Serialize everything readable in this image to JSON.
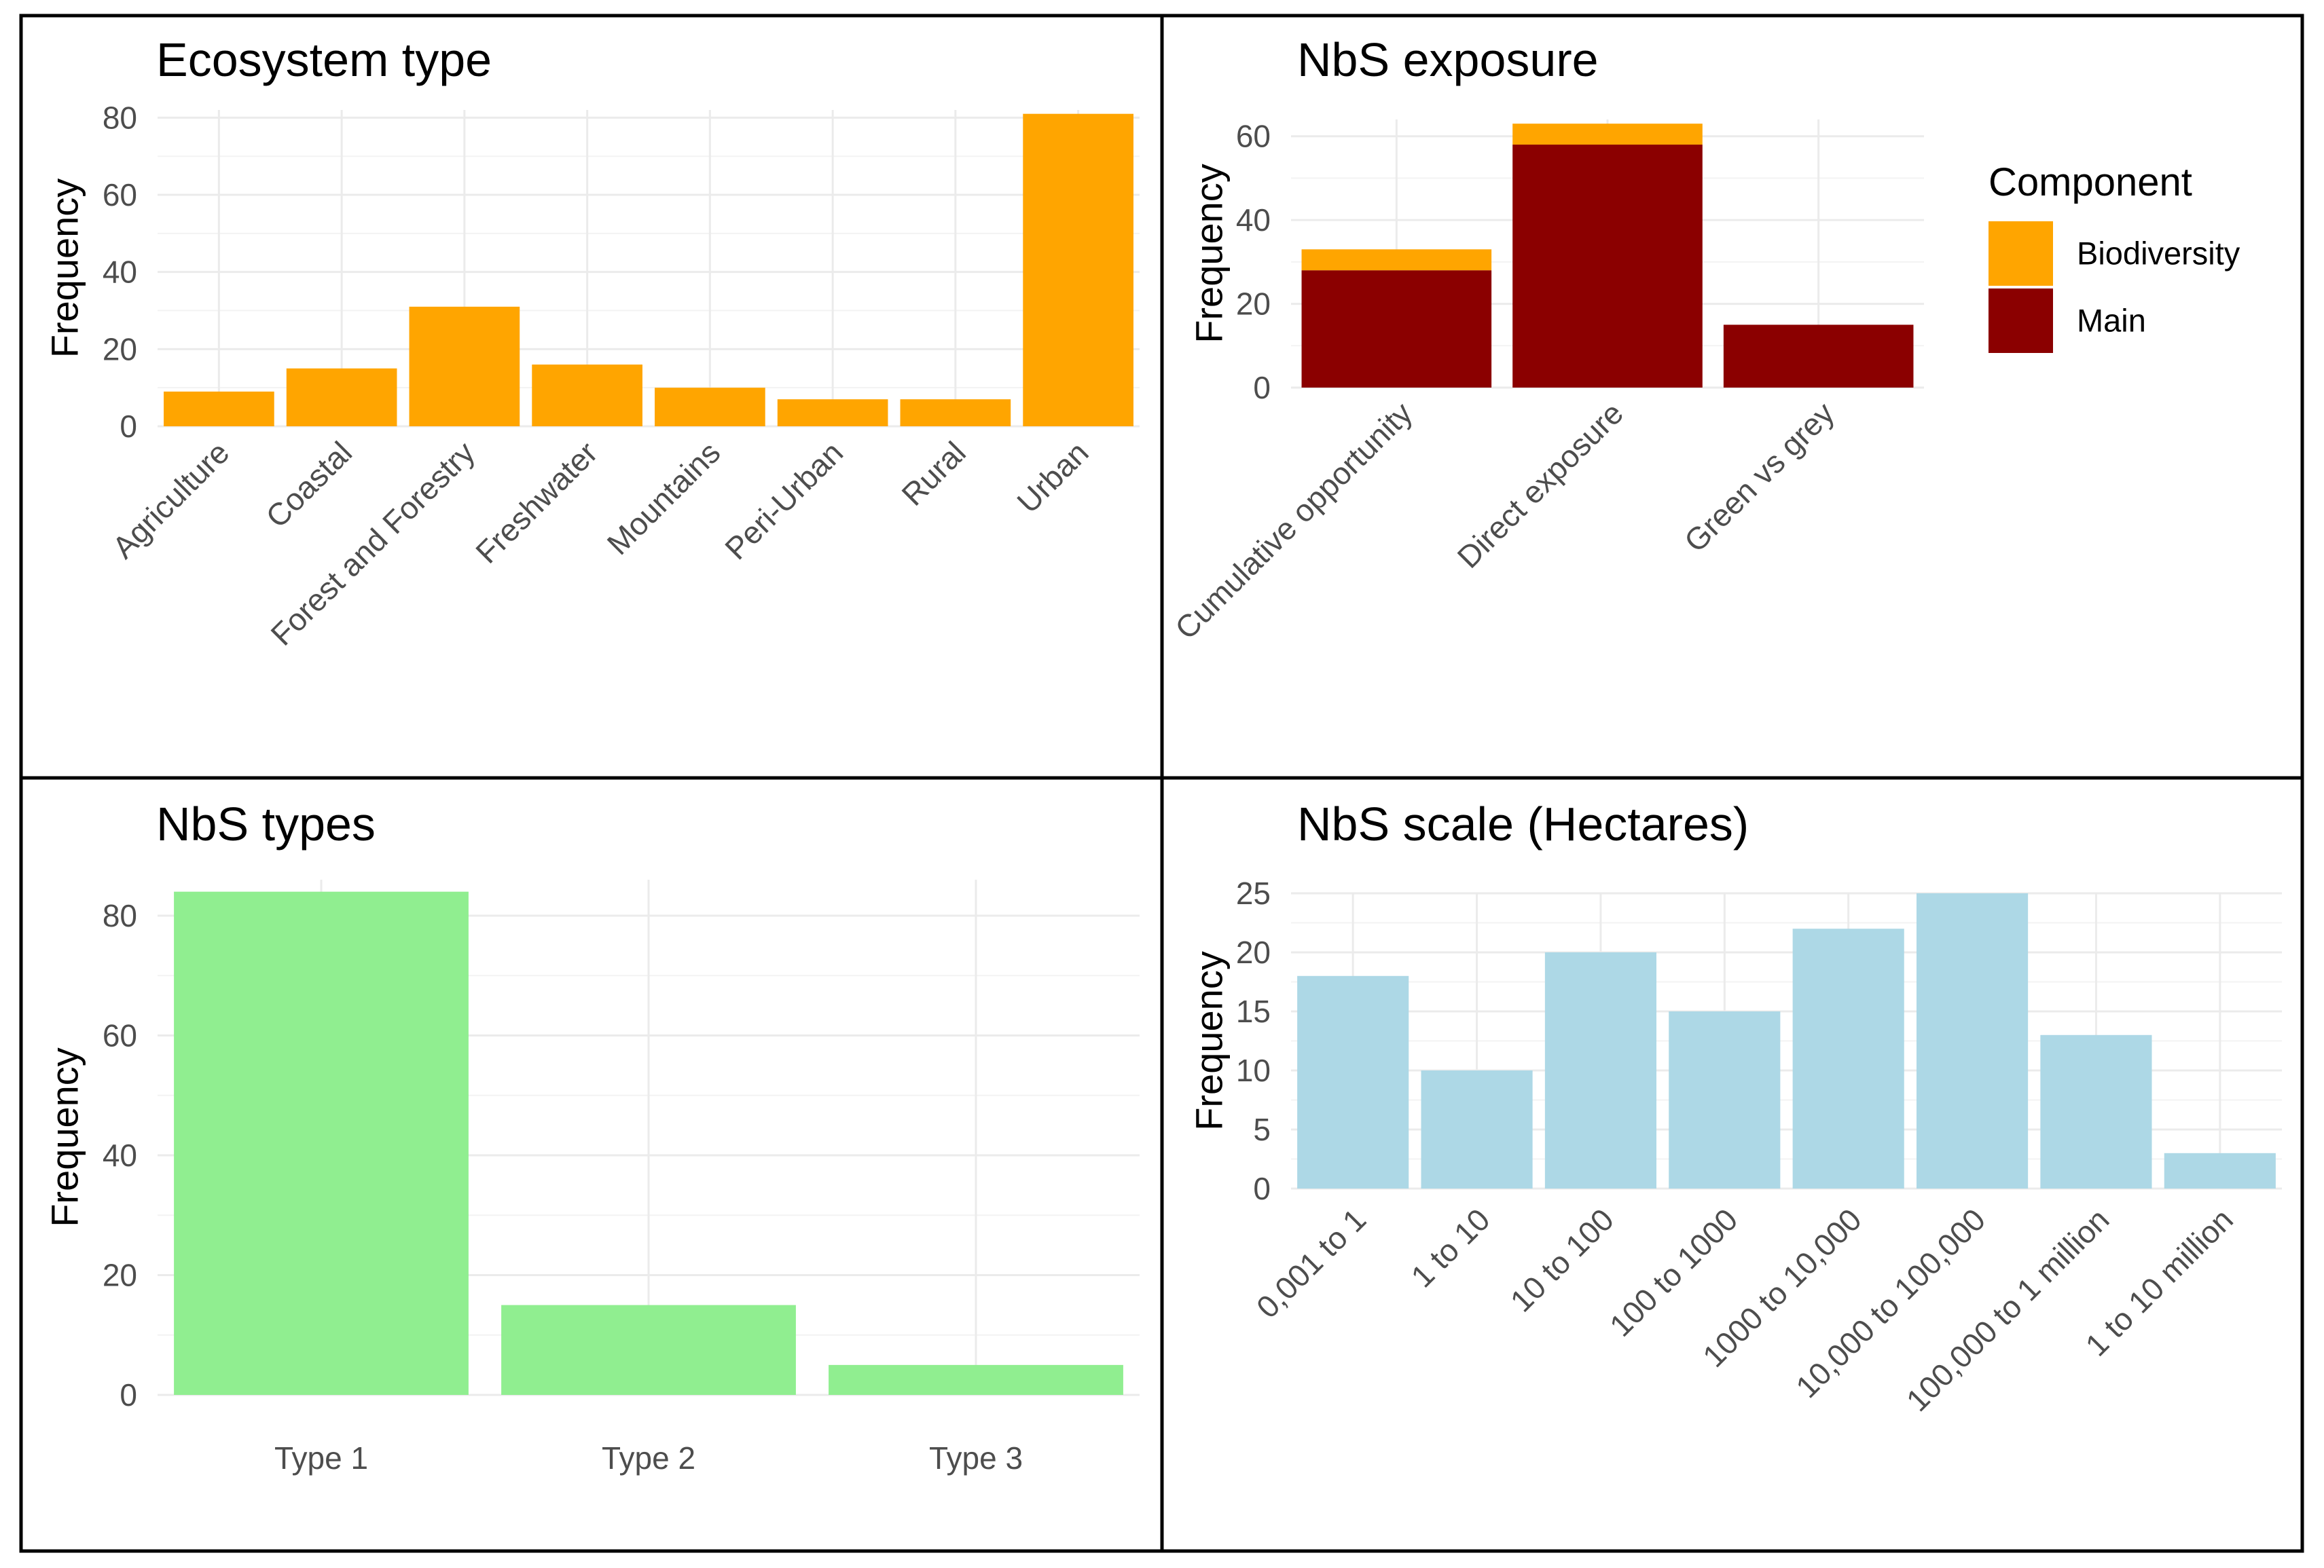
{
  "colors": {
    "orange": "#FFA500",
    "darkred": "#8B0000",
    "lightgreen": "#90EE90",
    "lightblue": "#ADD8E6"
  },
  "chart_data": [
    {
      "type": "bar",
      "title": "Ecosystem type",
      "xlabel": "",
      "ylabel": "Frequency",
      "ylim": [
        0,
        82
      ],
      "yticks": [
        0,
        20,
        40,
        60,
        80
      ],
      "grid": true,
      "color": "#FFA500",
      "categories": [
        "Agriculture",
        "Coastal",
        "Forest and Forestry",
        "Freshwater",
        "Mountains",
        "Peri-Urban",
        "Rural",
        "Urban"
      ],
      "values": [
        9,
        15,
        31,
        16,
        10,
        7,
        7,
        81
      ]
    },
    {
      "type": "bar",
      "stacked": true,
      "title": "NbS exposure",
      "xlabel": "",
      "ylabel": "Frequency",
      "ylim": [
        0,
        64
      ],
      "yticks": [
        0,
        20,
        40,
        60
      ],
      "grid": true,
      "categories": [
        "Cumulative opportunity",
        "Direct exposure",
        "Green vs grey"
      ],
      "series": [
        {
          "name": "Main",
          "color": "#8B0000",
          "values": [
            28,
            58,
            15
          ]
        },
        {
          "name": "Biodiversity",
          "color": "#FFA500",
          "values": [
            5,
            5,
            0
          ]
        }
      ],
      "legend": {
        "title": "Component",
        "position": "right",
        "entries": [
          {
            "label": "Biodiversity",
            "color": "#FFA500"
          },
          {
            "label": "Main",
            "color": "#8B0000"
          }
        ]
      }
    },
    {
      "type": "bar",
      "title": "NbS types",
      "xlabel": "",
      "ylabel": "Frequency",
      "ylim": [
        0,
        86
      ],
      "yticks": [
        0,
        20,
        40,
        60,
        80
      ],
      "grid": true,
      "color": "#90EE90",
      "categories": [
        "Type 1",
        "Type 2",
        "Type 3"
      ],
      "values": [
        84,
        15,
        5
      ]
    },
    {
      "type": "bar",
      "title": "NbS scale (Hectares)",
      "xlabel": "",
      "ylabel": "Frequency",
      "ylim": [
        0,
        25
      ],
      "yticks": [
        0,
        5,
        10,
        15,
        20,
        25
      ],
      "grid": true,
      "color": "#ADD8E6",
      "categories": [
        "0,001 to 1",
        "1 to 10",
        "10 to 100",
        "100 to 1000",
        "1000 to 10,000",
        "10,000 to 100,000",
        "100,000 to 1 million",
        "1 to 10 million"
      ],
      "values": [
        18,
        10,
        20,
        15,
        22,
        25,
        13,
        3
      ]
    }
  ]
}
